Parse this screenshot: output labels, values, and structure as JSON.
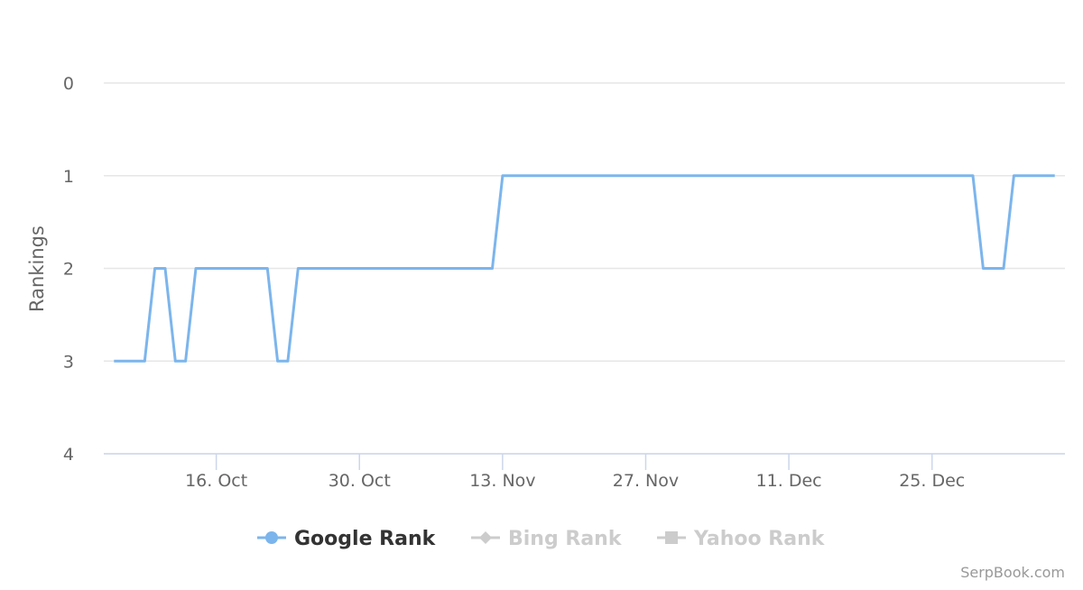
{
  "chart_data": {
    "type": "line",
    "y_label": "Rankings",
    "x": [
      "6. Oct",
      "9. Oct",
      "10. Oct",
      "11. Oct",
      "12. Oct",
      "13. Oct",
      "14. Oct",
      "21. Oct",
      "22. Oct",
      "23. Oct",
      "24. Oct",
      "12. Nov",
      "13. Nov",
      "29. Dec",
      "30. Dec",
      "1. Jan",
      "2. Jan",
      "6. Jan"
    ],
    "xlim": [
      "5. Oct",
      "7. Jan"
    ],
    "xticks": [
      "16. Oct",
      "30. Oct",
      "13. Nov",
      "27. Nov",
      "11. Dec",
      "25. Dec"
    ],
    "ylim": [
      0,
      4
    ],
    "yticks": [
      0,
      1,
      2,
      3,
      4
    ],
    "y_reversed": true,
    "grid": true,
    "series": [
      {
        "name": "Google Rank",
        "color": "#7cb5ec",
        "marker": "circle",
        "visible": true,
        "values": [
          3,
          3,
          2,
          2,
          3,
          3,
          2,
          2,
          3,
          3,
          2,
          2,
          1,
          1,
          2,
          2,
          1,
          1
        ]
      },
      {
        "name": "Bing Rank",
        "color": "#cccccc",
        "marker": "diamond",
        "visible": false
      },
      {
        "name": "Yahoo Rank",
        "color": "#cccccc",
        "marker": "square",
        "visible": false
      }
    ],
    "credit": "SerpBook.com"
  }
}
